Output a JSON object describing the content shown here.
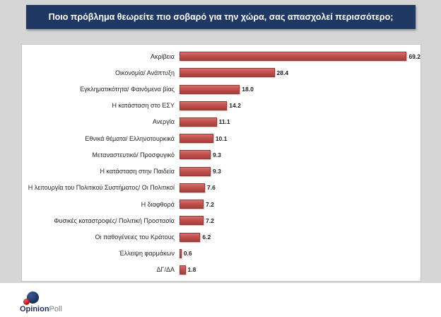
{
  "title": "Ποιο πρόβλημα θεωρείτε πιο σοβαρό για την χώρα, σας απασχολεί περισσότερο;",
  "brand": {
    "name_bold": "Opinion",
    "name_light": "Poll"
  },
  "colors": {
    "background": "#d6d6d6",
    "title_bar": "#1f3864",
    "bar_fill": "#c0504d",
    "bar_border": "#8e3a36",
    "panel": "#ffffff"
  },
  "chart_data": {
    "type": "bar",
    "orientation": "horizontal",
    "title": "Ποιο πρόβλημα θεωρείτε πιο σοβαρό για την χώρα, σας απασχολεί περισσότερο;",
    "categories": [
      "Ακρίβεια",
      "Οικονομία/ Ανάπτυξη",
      "Εγκληματικότητα/ Φαινόμενα βίας",
      "Η κατάσταση στο ΕΣΥ",
      "Ανεργία",
      "Εθνικά θέματα/ Ελληνοτουρκικά",
      "Μεταναστευτικό/ Προσφυγικό",
      "Η κατάσταση στην Παιδεία",
      "Η λειτουργία του Πολιτικού Συστήματος/ Οι Πολιτικοί",
      "Η διαφθορά",
      "Φυσικές καταστροφές/ Πολιτική Προστασία",
      "Οι παθογένειες του Κράτους",
      "Έλλειψη φαρμάκων",
      "ΔΓ/ΔΑ"
    ],
    "values": [
      69.2,
      28.4,
      18.0,
      14.2,
      11.1,
      10.1,
      9.3,
      9.3,
      7.6,
      7.2,
      7.2,
      6.2,
      0.6,
      1.8
    ],
    "xlabel": "",
    "ylabel": "",
    "xlim": [
      0,
      72
    ],
    "grid": false,
    "legend": false,
    "value_labels": true
  }
}
